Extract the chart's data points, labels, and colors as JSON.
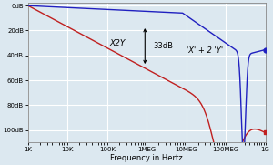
{
  "xlabel": "Frequency in Hertz",
  "yticks": [
    0,
    -20,
    -40,
    -60,
    -80,
    -100
  ],
  "ytick_labels": [
    "0dB",
    "20dB",
    "40dB",
    "60dB",
    "80dB",
    "100dB"
  ],
  "xtick_positions": [
    1000,
    10000,
    100000,
    1000000,
    10000000,
    100000000,
    1000000000
  ],
  "xtick_labels": [
    "1K",
    "10K",
    "100K",
    "1MEG",
    "10MEG",
    "100MEG",
    "1G"
  ],
  "freq_min": 1000,
  "freq_max": 1000000000,
  "background_color": "#dce8f0",
  "grid_color": "#ffffff",
  "color_x2y": "#c02020",
  "color_xy": "#2020c0",
  "annotation_33db": "33dB",
  "annotation_x2y": "X2Y",
  "annotation_xpy": "'X' + 2 'Y'"
}
